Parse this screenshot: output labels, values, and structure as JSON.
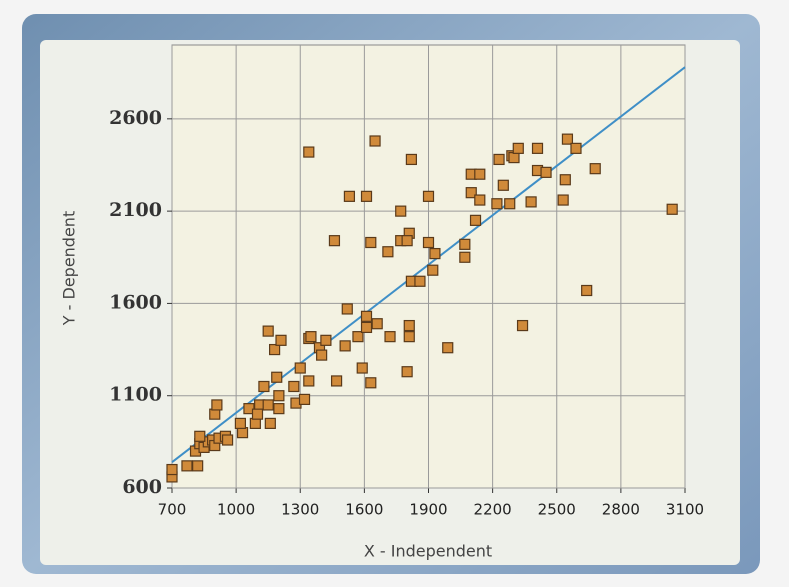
{
  "chart_data": {
    "type": "scatter",
    "x_label": "X - Independent",
    "y_label": "Y - Dependent",
    "xlim": [
      700,
      3100
    ],
    "xticks": [
      700,
      1000,
      1300,
      1600,
      1900,
      2200,
      2500,
      2800,
      3100
    ],
    "ylim": [
      600,
      3000
    ],
    "yticks": [
      600,
      1100,
      1600,
      2100,
      2600
    ],
    "grid": true,
    "color": "#d08a3a",
    "x": [
      700,
      700,
      770,
      820,
      810,
      830,
      850,
      870,
      890,
      900,
      920,
      950,
      960,
      900,
      910,
      830,
      1030,
      1020,
      1060,
      1090,
      1110,
      1100,
      1150,
      1160,
      1130,
      1200,
      1200,
      1190,
      1180,
      1150,
      1210,
      1270,
      1280,
      1300,
      1320,
      1340,
      1340,
      1350,
      1390,
      1400,
      1420,
      1470,
      1510,
      1520,
      1570,
      1590,
      1610,
      1610,
      1630,
      1660,
      1720,
      1800,
      1810,
      1810,
      1990,
      1340,
      1650,
      1530,
      1610,
      1460,
      1630,
      1710,
      1770,
      1770,
      1810,
      1800,
      1820,
      1820,
      1860,
      1900,
      1900,
      1920,
      1930,
      2070,
      2070,
      2100,
      2100,
      2120,
      2140,
      2140,
      2220,
      2230,
      2250,
      2280,
      2290,
      2300,
      2320,
      2340,
      2380,
      2410,
      2410,
      2450,
      2530,
      2540,
      2550,
      2590,
      2640,
      2680,
      3040
    ],
    "y": [
      660,
      700,
      720,
      720,
      800,
      840,
      820,
      850,
      860,
      830,
      870,
      880,
      860,
      1000,
      1050,
      880,
      900,
      950,
      1030,
      950,
      1050,
      1000,
      1050,
      950,
      1150,
      1100,
      1030,
      1200,
      1350,
      1450,
      1400,
      1150,
      1060,
      1250,
      1080,
      1180,
      1410,
      1420,
      1360,
      1320,
      1400,
      1180,
      1370,
      1570,
      1420,
      1250,
      1470,
      1530,
      1170,
      1490,
      1420,
      1230,
      1420,
      1480,
      1360,
      2420,
      2480,
      2180,
      2180,
      1940,
      1930,
      1880,
      1940,
      2100,
      1980,
      1940,
      2380,
      1720,
      1720,
      2180,
      1930,
      1780,
      1870,
      1920,
      1850,
      2200,
      2300,
      2050,
      2300,
      2160,
      2140,
      2380,
      2240,
      2140,
      2400,
      2390,
      2440,
      1480,
      2150,
      2440,
      2320,
      2310,
      2160,
      2270,
      2490,
      2440,
      1670,
      2330,
      2110
    ],
    "trendline": {
      "x": [
        700,
        3100
      ],
      "y": [
        740,
        2880
      ],
      "color": "#3f8fc7"
    }
  }
}
